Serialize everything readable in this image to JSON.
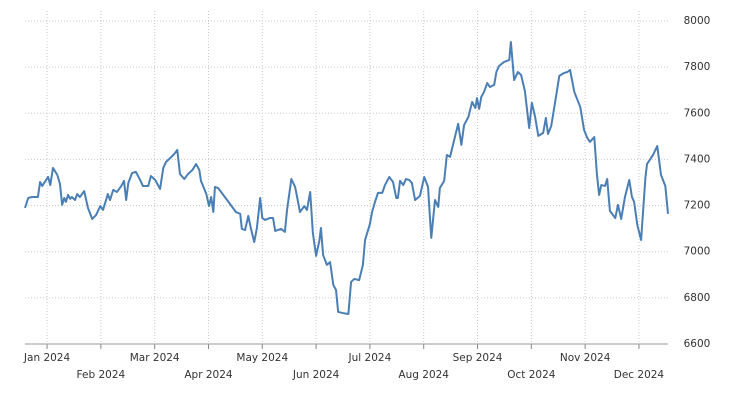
{
  "chart_data": {
    "type": "line",
    "grid": true,
    "color": "#4a7fb5",
    "x": [
      -0.41,
      -0.35,
      -0.28,
      -0.17,
      -0.13,
      -0.09,
      0.02,
      0.06,
      0.11,
      0.19,
      0.24,
      0.28,
      0.32,
      0.35,
      0.39,
      0.43,
      0.46,
      0.52,
      0.56,
      0.61,
      0.69,
      0.76,
      0.84,
      0.91,
      0.99,
      1.04,
      1.13,
      1.17,
      1.23,
      1.3,
      1.38,
      1.43,
      1.47,
      1.51,
      1.58,
      1.65,
      1.73,
      1.78,
      1.88,
      1.93,
      2.01,
      2.1,
      2.16,
      2.21,
      2.29,
      2.38,
      2.42,
      2.47,
      2.55,
      2.62,
      2.7,
      2.77,
      2.83,
      2.86,
      2.96,
      3.01,
      3.05,
      3.09,
      3.12,
      3.18,
      3.33,
      3.51,
      3.59,
      3.62,
      3.68,
      3.74,
      3.79,
      3.85,
      3.9,
      3.96,
      4.0,
      4.05,
      4.14,
      4.2,
      4.24,
      4.35,
      4.42,
      4.46,
      4.54,
      4.61,
      4.65,
      4.7,
      4.78,
      4.83,
      4.89,
      4.94,
      5.0,
      5.06,
      5.09,
      5.13,
      5.2,
      5.26,
      5.32,
      5.37,
      5.41,
      5.5,
      5.6,
      5.65,
      5.71,
      5.8,
      5.87,
      5.91,
      6.0,
      6.04,
      6.1,
      6.15,
      6.23,
      6.28,
      6.36,
      6.43,
      6.49,
      6.52,
      6.56,
      6.62,
      6.67,
      6.73,
      6.78,
      6.84,
      6.93,
      7.01,
      7.08,
      7.14,
      7.21,
      7.27,
      7.3,
      7.38,
      7.43,
      7.49,
      7.53,
      7.58,
      7.64,
      7.7,
      7.75,
      7.83,
      7.9,
      7.96,
      7.99,
      8.03,
      8.07,
      8.12,
      8.18,
      8.23,
      8.31,
      8.35,
      8.4,
      8.49,
      8.59,
      8.62,
      8.68,
      8.75,
      8.81,
      8.88,
      8.96,
      9.01,
      9.07,
      9.13,
      9.22,
      9.27,
      9.31,
      9.37,
      9.44,
      9.52,
      9.61,
      9.67,
      9.72,
      9.8,
      9.91,
      9.98,
      10.04,
      10.09,
      10.17,
      10.22,
      10.26,
      10.3,
      10.37,
      10.41,
      10.46,
      10.56,
      10.61,
      10.67,
      10.74,
      10.82,
      10.87,
      10.91,
      10.97,
      11.04,
      11.12,
      11.15,
      11.26,
      11.34,
      11.41,
      11.49,
      11.54
    ],
    "values": [
      7190,
      7233,
      7237,
      7237,
      7302,
      7285,
      7324,
      7289,
      7363,
      7333,
      7294,
      7203,
      7233,
      7216,
      7246,
      7229,
      7237,
      7224,
      7250,
      7237,
      7263,
      7190,
      7142,
      7159,
      7198,
      7181,
      7250,
      7224,
      7268,
      7259,
      7285,
      7307,
      7224,
      7298,
      7341,
      7346,
      7311,
      7285,
      7285,
      7328,
      7311,
      7272,
      7363,
      7389,
      7406,
      7428,
      7441,
      7337,
      7315,
      7337,
      7354,
      7380,
      7354,
      7307,
      7250,
      7198,
      7237,
      7172,
      7281,
      7276,
      7229,
      7172,
      7164,
      7099,
      7094,
      7155,
      7099,
      7042,
      7103,
      7233,
      7146,
      7138,
      7146,
      7146,
      7090,
      7099,
      7086,
      7181,
      7315,
      7281,
      7233,
      7172,
      7198,
      7181,
      7259,
      7081,
      6982,
      7047,
      7103,
      6986,
      6943,
      6955,
      6856,
      6834,
      6739,
      6734,
      6730,
      6869,
      6882,
      6877,
      6943,
      7051,
      7120,
      7172,
      7220,
      7255,
      7255,
      7289,
      7324,
      7302,
      7233,
      7233,
      7307,
      7289,
      7315,
      7311,
      7298,
      7224,
      7242,
      7324,
      7281,
      7060,
      7224,
      7194,
      7276,
      7307,
      7419,
      7411,
      7450,
      7497,
      7554,
      7463,
      7549,
      7584,
      7649,
      7623,
      7666,
      7619,
      7671,
      7692,
      7731,
      7714,
      7723,
      7779,
      7805,
      7822,
      7831,
      7909,
      7744,
      7779,
      7766,
      7697,
      7536,
      7645,
      7584,
      7502,
      7515,
      7580,
      7510,
      7545,
      7645,
      7762,
      7775,
      7779,
      7788,
      7692,
      7627,
      7528,
      7493,
      7476,
      7497,
      7333,
      7246,
      7289,
      7285,
      7315,
      7177,
      7146,
      7203,
      7142,
      7237,
      7311,
      7237,
      7216,
      7116,
      7051,
      7320,
      7380,
      7419,
      7458,
      7333,
      7285,
      7164
    ],
    "xlim": [
      -0.41,
      11.54
    ],
    "xticks": [
      {
        "value": 0,
        "label": "Jan 2024"
      },
      {
        "value": 1,
        "label": "Feb 2024"
      },
      {
        "value": 2,
        "label": "Mar 2024"
      },
      {
        "value": 3,
        "label": "Apr 2024"
      },
      {
        "value": 4,
        "label": "May 2024"
      },
      {
        "value": 5,
        "label": "Jun 2024"
      },
      {
        "value": 6,
        "label": "Jul 2024"
      },
      {
        "value": 7,
        "label": "Aug 2024"
      },
      {
        "value": 8,
        "label": "Sep 2024"
      },
      {
        "value": 9,
        "label": "Oct 2024"
      },
      {
        "value": 10,
        "label": "Nov 2024"
      },
      {
        "value": 11,
        "label": "Dec 2024"
      }
    ],
    "ylim": [
      6600,
      8000
    ],
    "yticks": [
      6600,
      6800,
      7000,
      7200,
      7400,
      7600,
      7800,
      8000
    ]
  }
}
